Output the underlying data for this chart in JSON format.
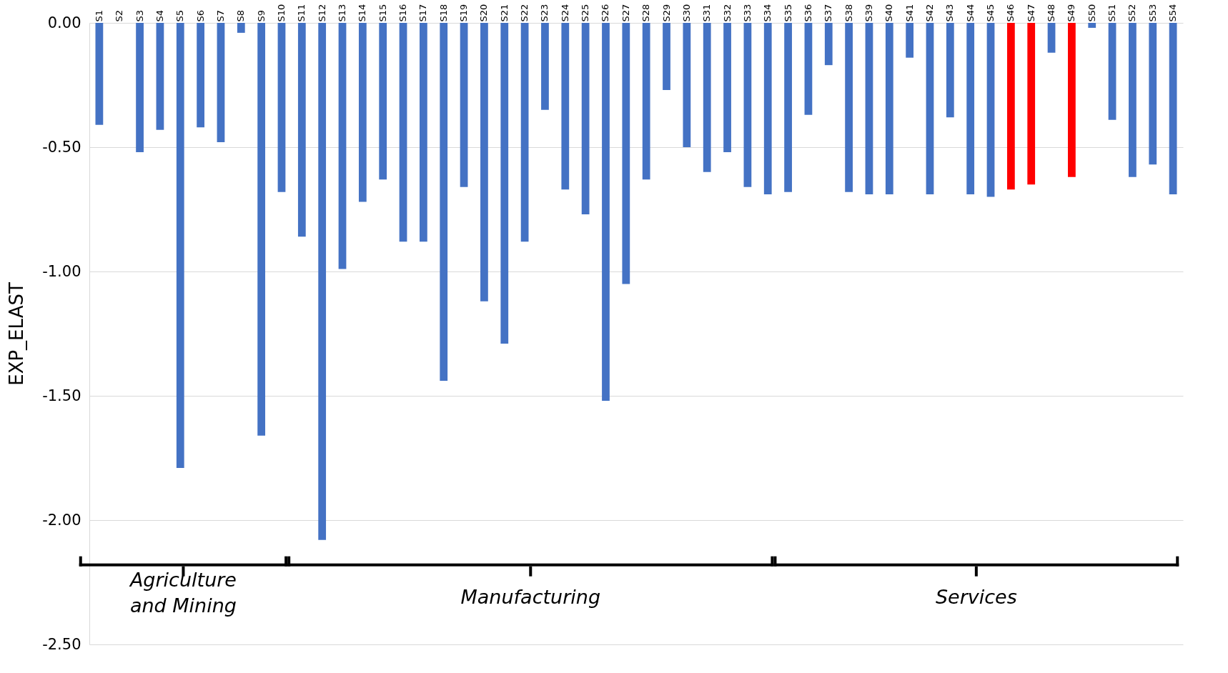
{
  "chart_data": {
    "type": "bar",
    "ylabel": "EXP_ELAST",
    "categories": [
      "S1",
      "S2",
      "S3",
      "S4",
      "S5",
      "S6",
      "S7",
      "S8",
      "S9",
      "S10",
      "S11",
      "S12",
      "S13",
      "S14",
      "S15",
      "S16",
      "S17",
      "S18",
      "S19",
      "S20",
      "S21",
      "S22",
      "S23",
      "S24",
      "S25",
      "S26",
      "S27",
      "S28",
      "S29",
      "S30",
      "S31",
      "S32",
      "S33",
      "S34",
      "S35",
      "S36",
      "S37",
      "S38",
      "S39",
      "S40",
      "S41",
      "S42",
      "S43",
      "S44",
      "S45",
      "S46",
      "S47",
      "S48",
      "S49",
      "S50",
      "S51",
      "S52",
      "S53",
      "S54"
    ],
    "values": [
      -0.41,
      0,
      -0.52,
      -0.43,
      -1.79,
      -0.42,
      -0.48,
      -0.04,
      -1.66,
      -0.68,
      -0.86,
      -2.08,
      -0.99,
      -0.72,
      -0.63,
      -0.88,
      -0.88,
      -1.44,
      -0.66,
      -1.12,
      -1.29,
      -0.88,
      -0.35,
      -0.67,
      -0.77,
      -1.52,
      -1.05,
      -0.63,
      -0.27,
      -0.5,
      -0.6,
      -0.52,
      -0.66,
      -0.69,
      -0.68,
      -0.37,
      -0.17,
      -0.68,
      -0.69,
      -0.69,
      -0.14,
      -0.69,
      -0.38,
      -0.69,
      -0.7,
      -0.67,
      -0.65,
      -0.12,
      -0.62,
      -0.02,
      -0.39,
      -0.62,
      -0.57,
      -0.69
    ],
    "colors": [
      "#4472c4",
      "#4472c4",
      "#4472c4",
      "#4472c4",
      "#4472c4",
      "#4472c4",
      "#4472c4",
      "#4472c4",
      "#4472c4",
      "#4472c4",
      "#4472c4",
      "#4472c4",
      "#4472c4",
      "#4472c4",
      "#4472c4",
      "#4472c4",
      "#4472c4",
      "#4472c4",
      "#4472c4",
      "#4472c4",
      "#4472c4",
      "#4472c4",
      "#4472c4",
      "#4472c4",
      "#4472c4",
      "#4472c4",
      "#4472c4",
      "#4472c4",
      "#4472c4",
      "#4472c4",
      "#4472c4",
      "#4472c4",
      "#4472c4",
      "#4472c4",
      "#4472c4",
      "#4472c4",
      "#4472c4",
      "#4472c4",
      "#4472c4",
      "#4472c4",
      "#4472c4",
      "#4472c4",
      "#4472c4",
      "#4472c4",
      "#4472c4",
      "#ff0000",
      "#ff0000",
      "#4472c4",
      "#ff0000",
      "#4472c4",
      "#4472c4",
      "#4472c4",
      "#4472c4",
      "#4472c4"
    ],
    "ylim": [
      -2.5,
      0
    ],
    "yticks": [
      {
        "value": 0,
        "label": "0.00"
      },
      {
        "value": -0.5,
        "label": "-0.50"
      },
      {
        "value": -1,
        "label": "-1.00"
      },
      {
        "value": -1.5,
        "label": "-1.50"
      },
      {
        "value": -2,
        "label": "-2.00"
      },
      {
        "value": -2.5,
        "label": "-2.50"
      }
    ],
    "grid": "y",
    "annotations": [
      "Agriculture and Mining",
      "Manufacturing",
      "Services"
    ]
  }
}
